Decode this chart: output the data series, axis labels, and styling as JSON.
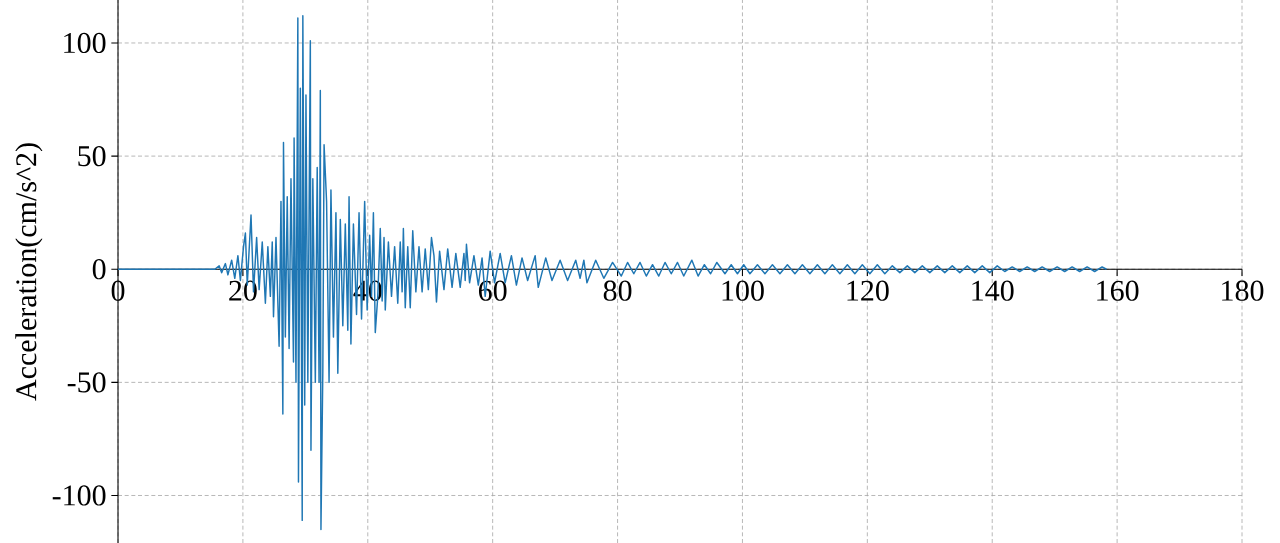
{
  "chart_data": {
    "type": "line",
    "ylabel": "Acceleration(cm/s^2)",
    "x": [
      0,
      15.5,
      16.2,
      16.6,
      17.2,
      17.6,
      18.2,
      18.7,
      19.2,
      19.6,
      20.1,
      20.4,
      20.7,
      21.3,
      21.7,
      22.2,
      22.6,
      23.1,
      23.6,
      24.0,
      24.4,
      24.7,
      24.9,
      25.3,
      25.8,
      26.1,
      26.4,
      26.5,
      26.8,
      27.1,
      27.4,
      27.7,
      28.1,
      28.2,
      28.5,
      28.8,
      28.9,
      29.2,
      29.5,
      29.6,
      29.9,
      30.1,
      30.4,
      30.8,
      30.9,
      31.2,
      31.6,
      31.9,
      32.2,
      32.4,
      32.5,
      32.8,
      33.0,
      33.4,
      33.8,
      34.1,
      34.5,
      34.9,
      35.2,
      35.6,
      36.0,
      36.4,
      36.8,
      37.0,
      37.3,
      37.7,
      38.2,
      38.6,
      39.0,
      39.5,
      39.9,
      40.3,
      40.6,
      40.9,
      41.2,
      41.6,
      42.0,
      42.3,
      42.6,
      42.8,
      43.3,
      43.8,
      44.3,
      44.8,
      45.2,
      45.5,
      45.7,
      46.0,
      46.4,
      46.8,
      47.2,
      47.7,
      48.2,
      48.7,
      49.2,
      49.7,
      50.2,
      50.6,
      51.0,
      51.5,
      52.2,
      52.8,
      53.5,
      54.1,
      54.8,
      55.4,
      55.6,
      55.8,
      56.3,
      57.0,
      57.7,
      58.3,
      58.8,
      59.6,
      60.3,
      61.2,
      62.0,
      63.0,
      63.8,
      64.7,
      65.6,
      66.8,
      67.3,
      68.5,
      69.5,
      70.8,
      72.0,
      73.3,
      74.0,
      74.6,
      75.1,
      76.5,
      77.8,
      79.2,
      80.6,
      81.6,
      82.6,
      83.6,
      84.6,
      85.6,
      86.6,
      87.6,
      88.6,
      89.6,
      90.6,
      91.9,
      92.9,
      93.9,
      94.9,
      95.9,
      97.2,
      98.2,
      99.2,
      100.2,
      101.2,
      102.4,
      103.6,
      104.8,
      106,
      107.2,
      108.4,
      109.6,
      110.8,
      112,
      113.2,
      114.4,
      115.6,
      116.8,
      118,
      119.2,
      120.4,
      121.6,
      122.8,
      124,
      125.2,
      126.4,
      127.6,
      128.8,
      130,
      131.2,
      132.4,
      133.6,
      134.8,
      136,
      137.2,
      138.4,
      139.6,
      140.8,
      142,
      143.2,
      144.4,
      145.6,
      146.8,
      148,
      149.2,
      150.4,
      151.6,
      152.8,
      154,
      155.2,
      156.4,
      157.6,
      158.3
    ],
    "values": [
      0,
      0,
      1.5,
      -1.5,
      2.5,
      -2.5,
      4,
      -4,
      6,
      -5,
      10,
      16,
      -7,
      24,
      -10,
      14,
      -9,
      12,
      -15,
      10,
      -12,
      12,
      -21,
      14,
      -34,
      30,
      -64,
      56,
      -30,
      32,
      -35,
      40,
      -41,
      58,
      -50,
      111,
      -94,
      80,
      -111,
      112,
      -60,
      77,
      -50,
      101,
      -80,
      40,
      -50,
      45,
      -50,
      79,
      -115,
      -45,
      55,
      30,
      -50,
      35,
      -30,
      25,
      -46,
      22,
      -25,
      20,
      -27,
      32,
      -33,
      20,
      -20,
      25,
      -22,
      30,
      -18,
      15,
      -12,
      25,
      -28,
      -12,
      18,
      -14,
      14,
      -18,
      12,
      -12,
      10,
      -15,
      12,
      -10,
      18,
      -17,
      10,
      -17,
      17,
      -10,
      10,
      -10,
      9,
      -9,
      14,
      6,
      -14.5,
      8,
      -9,
      9,
      -8,
      7,
      -8,
      7,
      -5,
      11,
      -6,
      6,
      -7,
      5,
      -12,
      8,
      -6,
      7,
      -6,
      6,
      -7,
      5,
      -5,
      6,
      -8,
      5,
      -5,
      4,
      -5,
      4,
      -4,
      4,
      -6,
      4,
      -4,
      3,
      -3,
      3,
      -2,
      3,
      -3,
      2,
      -3,
      3,
      -2,
      3,
      -3,
      4,
      -3,
      2,
      -2,
      3,
      -2,
      2,
      -2,
      2,
      -2,
      2,
      -2,
      2,
      -2,
      2,
      -2,
      2,
      -2,
      2,
      -2,
      2,
      -2,
      2,
      -2,
      2,
      -2,
      2,
      -2,
      1.5,
      -1.5,
      1.5,
      -1.5,
      1.5,
      -1.5,
      1.5,
      -1.5,
      1.5,
      -1.5,
      1.5,
      -1.5,
      1.5,
      -1.5,
      1.5,
      -1,
      1,
      -1,
      1,
      -1,
      1,
      -1,
      1,
      -1,
      1,
      -1,
      1,
      -1,
      1,
      0
    ],
    "color": "#1f77b4",
    "line_style": "solid",
    "xlim": [
      0,
      180
    ],
    "ylim": [
      -121,
      119
    ],
    "xticks": [
      0,
      20,
      40,
      60,
      80,
      100,
      120,
      140,
      160,
      180
    ],
    "yticks": [
      -100,
      -50,
      0,
      50,
      100
    ],
    "grid": true
  }
}
